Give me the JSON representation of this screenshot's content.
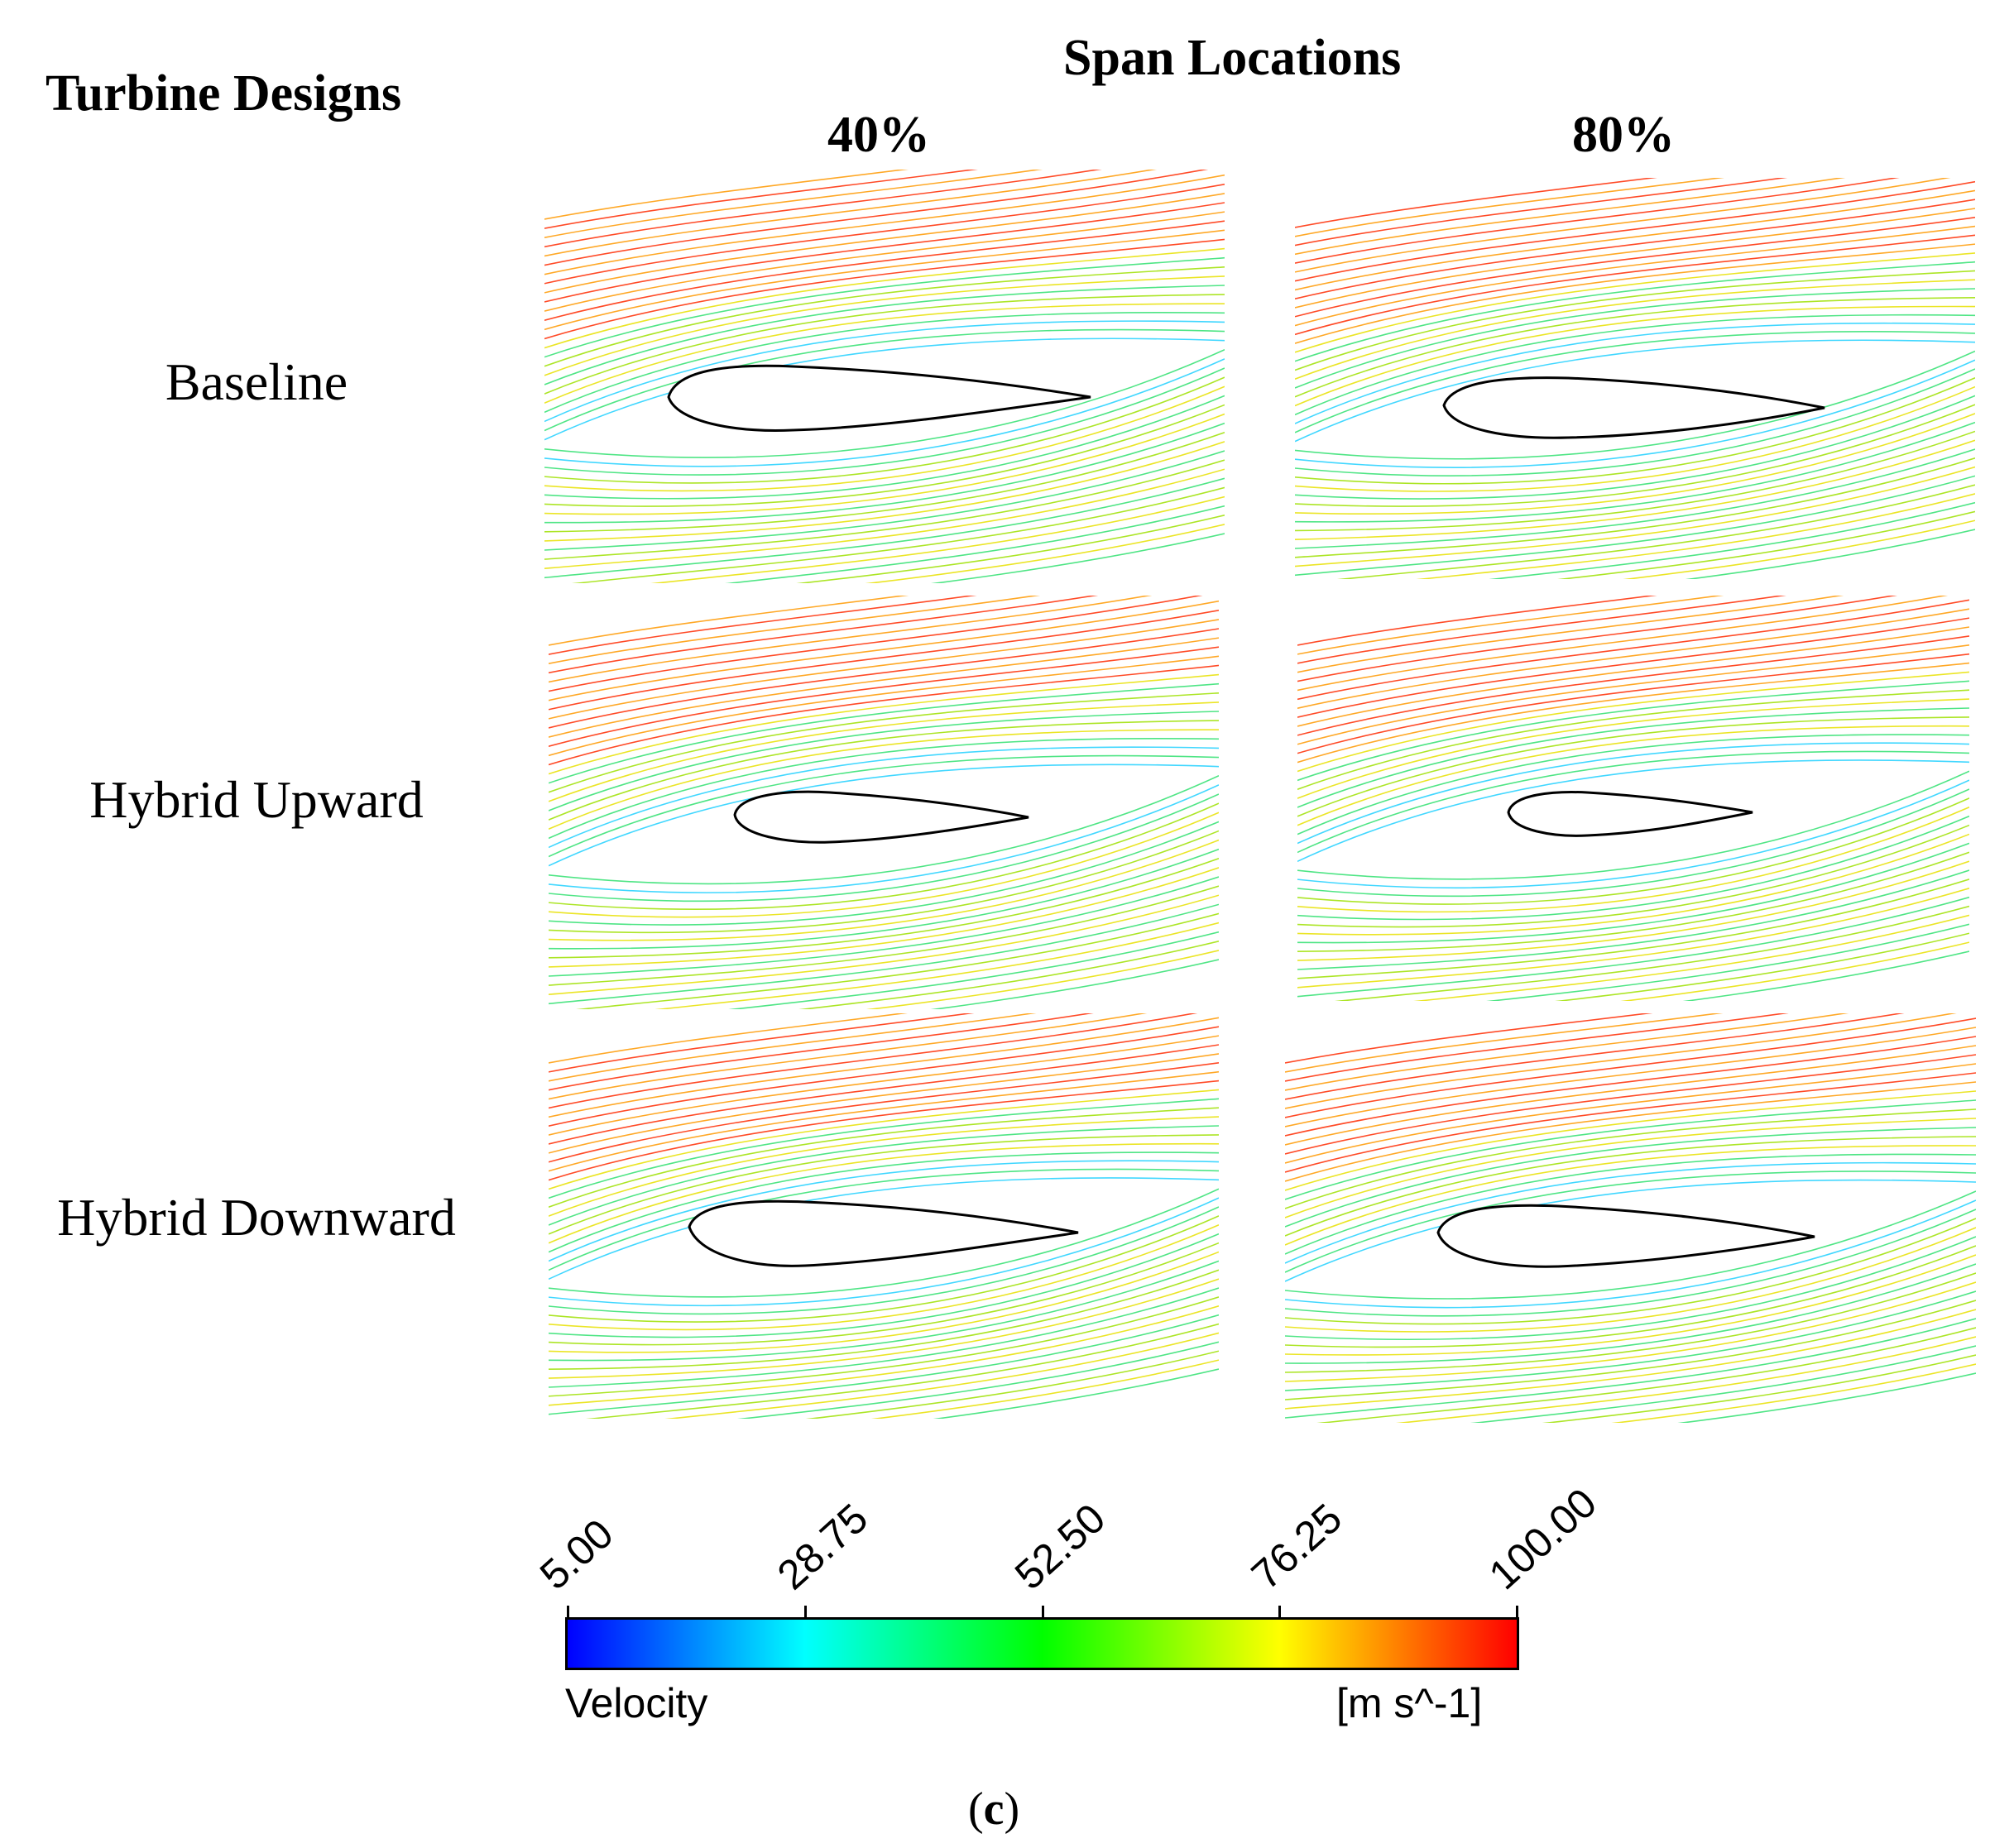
{
  "figure": {
    "row_header": "Turbine Designs",
    "column_header": "Span Locations",
    "columns": [
      "40%",
      "80%"
    ],
    "rows": [
      "Baseline",
      "Hybrid Upward",
      "Hybrid Downward"
    ],
    "caption_open": "(",
    "caption_letter": "c",
    "caption_close": ")"
  },
  "colorbar": {
    "ticks": [
      "5.00",
      "28.75",
      "52.50",
      "76.25",
      "100.00"
    ],
    "tick_values": [
      5.0,
      28.75,
      52.5,
      76.25,
      100.0
    ],
    "min": 5.0,
    "max": 100.0,
    "label": "Velocity",
    "unit": "[m s^-1]",
    "colors": [
      "#0000ff",
      "#00ffff",
      "#00ff00",
      "#ffff00",
      "#ff0000"
    ]
  }
}
